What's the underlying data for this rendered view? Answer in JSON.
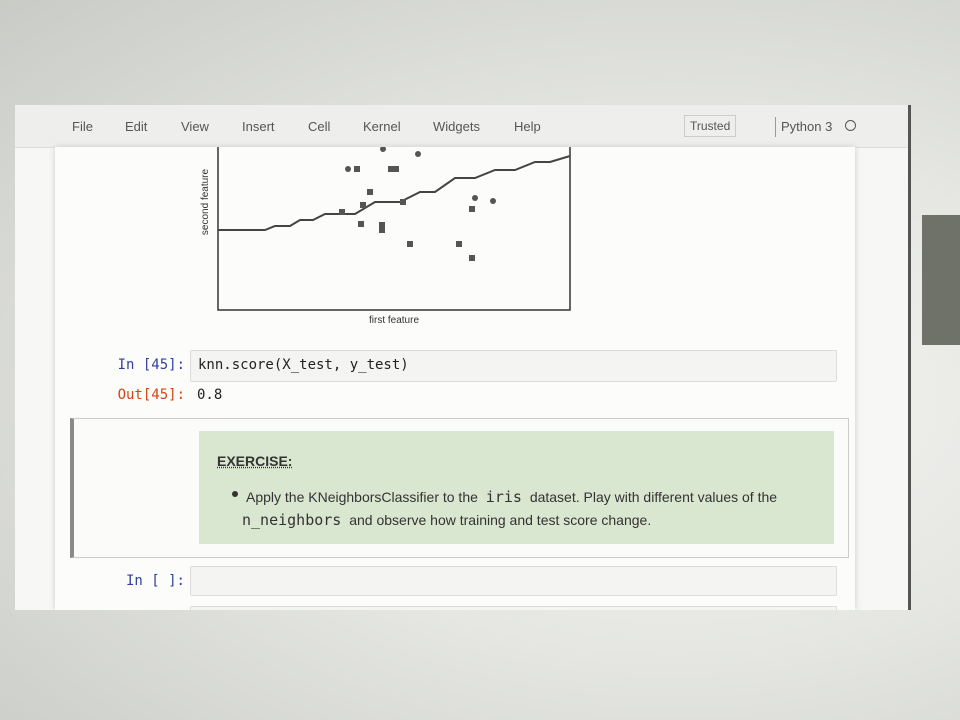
{
  "menu": {
    "items": [
      "File",
      "Edit",
      "View",
      "Insert",
      "Cell",
      "Kernel",
      "Widgets",
      "Help"
    ],
    "trusted": "Trusted",
    "kernel": "Python 3"
  },
  "plot": {
    "ylabel": "second feature",
    "xlabel": "first feature"
  },
  "cells": [
    {
      "prompt": "In [45]:",
      "code": "knn.score(X_test, y_test)",
      "out_prompt": "Out[45]:",
      "output": "0.8"
    },
    {
      "title": "EXERCISE:",
      "bullet": {
        "part1": "Apply the KNeighborsClassifier to the",
        "code1": "iris",
        "part2": "dataset. Play with different values of the",
        "code2": "n_neighbors",
        "part3": "and observe how training and test score change."
      }
    },
    {
      "prompt": "In [ ]:"
    }
  ]
}
